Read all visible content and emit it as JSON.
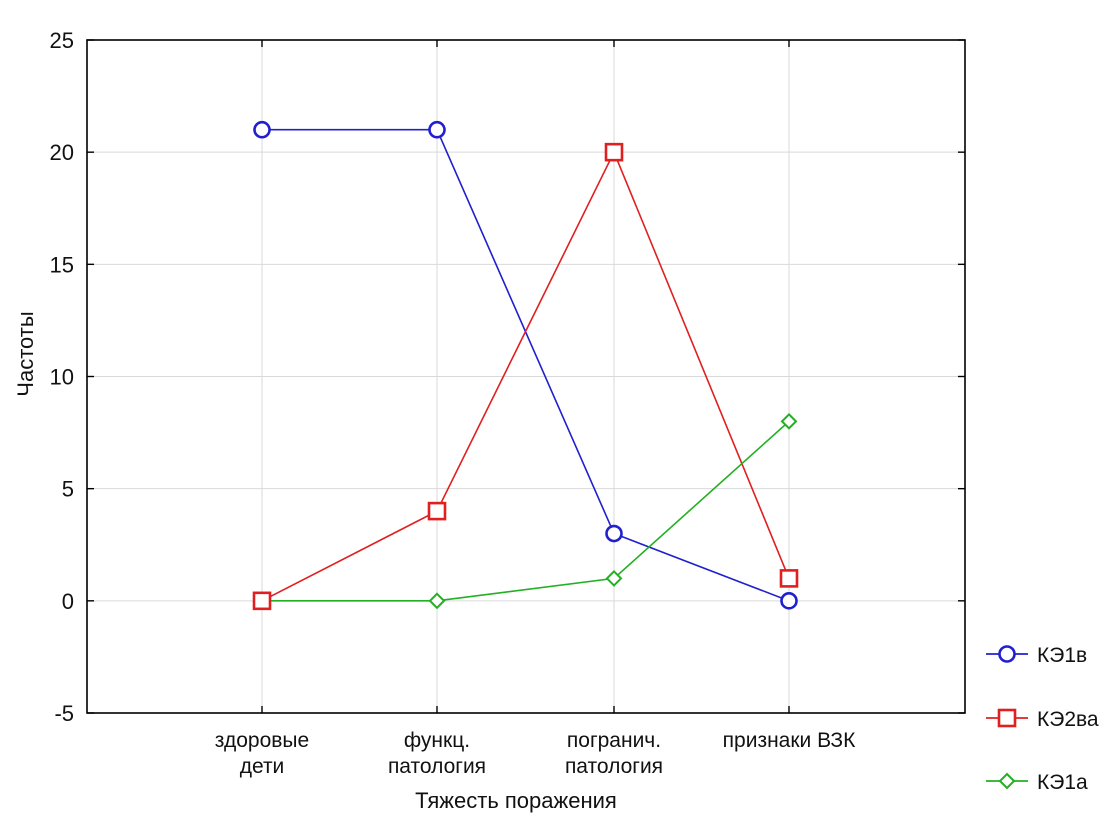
{
  "chart_data": {
    "type": "line",
    "title": "",
    "xlabel": "Тяжесть поражения",
    "ylabel": "Частоты",
    "ylim": [
      -5,
      25
    ],
    "yticks": [
      -5,
      0,
      5,
      10,
      15,
      20,
      25
    ],
    "grid": true,
    "legend_position": "bottom-right",
    "categories": [
      [
        "здоровые",
        "дети"
      ],
      [
        "функц.",
        "патология"
      ],
      [
        "погранич.",
        "патология"
      ],
      [
        "признаки ВЗК"
      ]
    ],
    "series": [
      {
        "name": "КЭ1в",
        "values": [
          21,
          21,
          3,
          0
        ],
        "color": "#2020d0",
        "marker": "circle"
      },
      {
        "name": "КЭ2ва",
        "values": [
          0,
          4,
          20,
          1
        ],
        "color": "#e02020",
        "marker": "square"
      },
      {
        "name": "КЭ1а",
        "values": [
          0,
          0,
          1,
          8
        ],
        "color": "#22b022",
        "marker": "diamond"
      }
    ]
  }
}
